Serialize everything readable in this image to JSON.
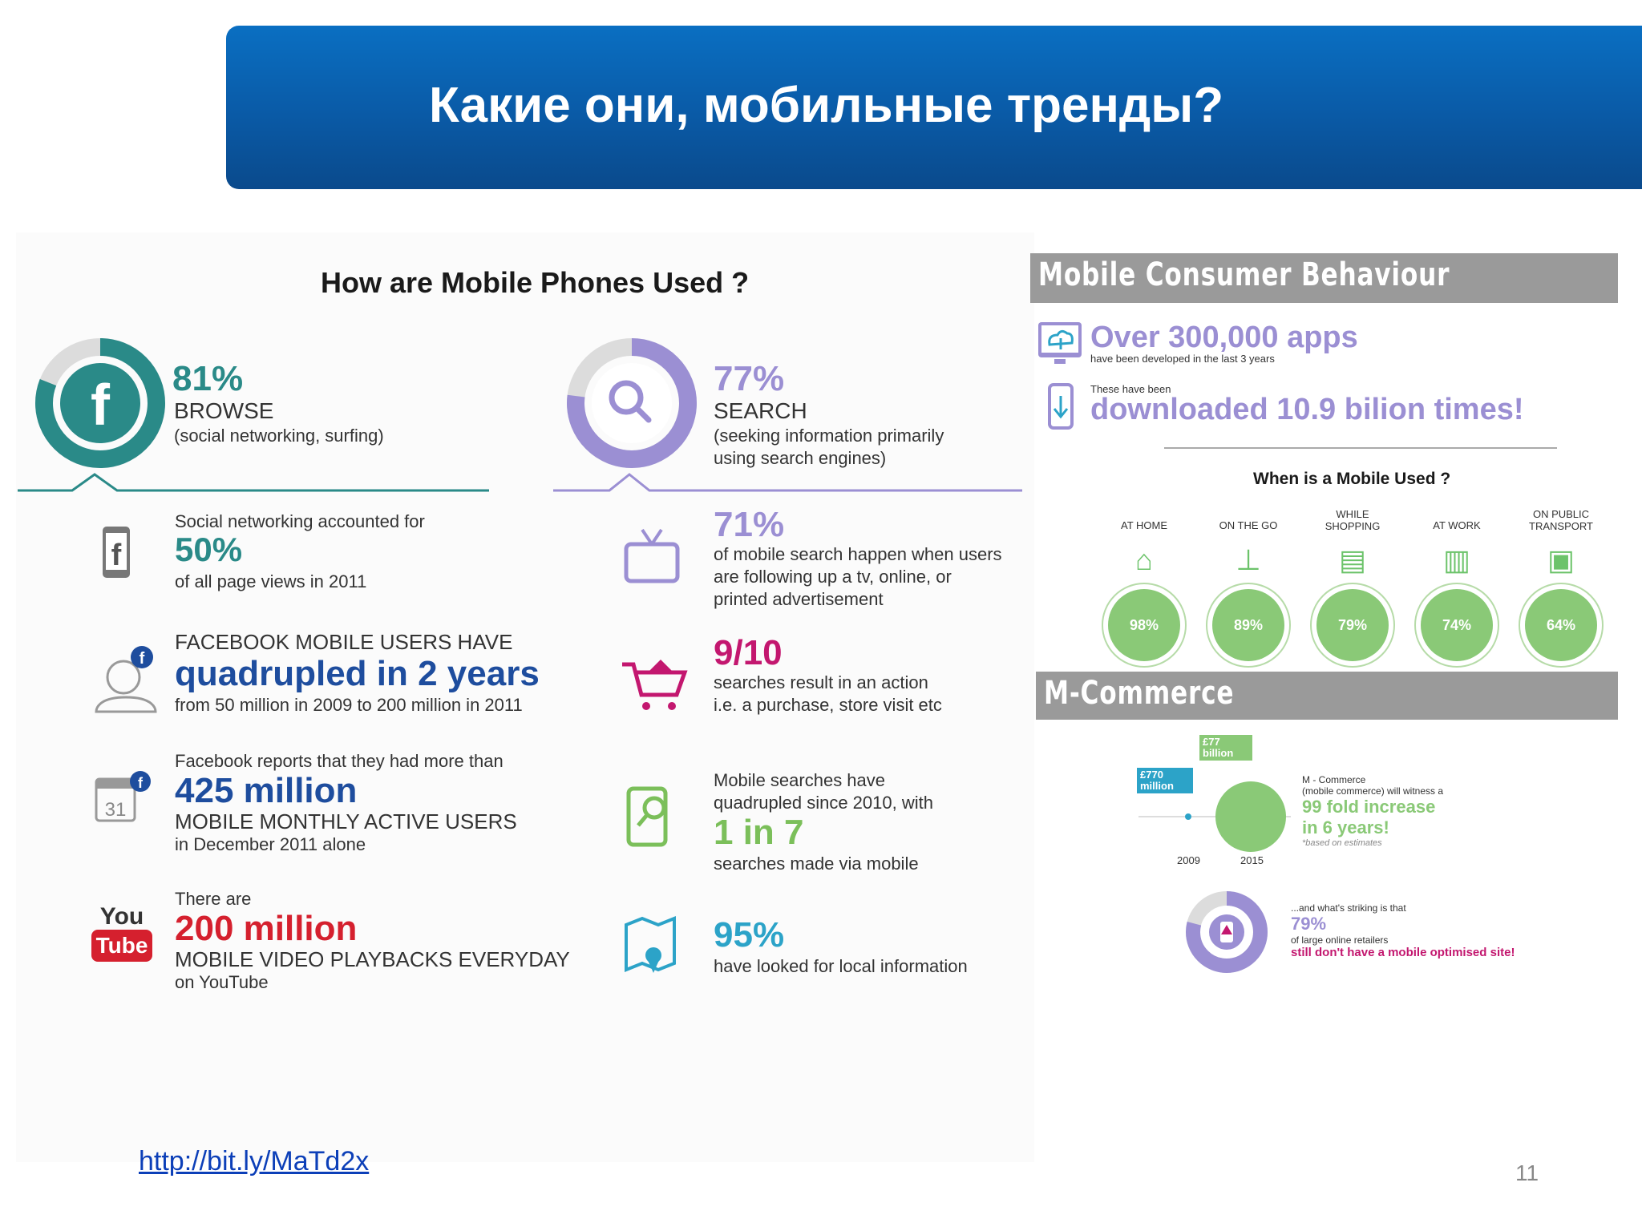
{
  "slide": {
    "title": "Какие они, мобильные тренды?",
    "url": "http://bit.ly/MaTd2x",
    "page_number": "11"
  },
  "left_infographic": {
    "title": "How are Mobile Phones Used ?",
    "browse": {
      "percent": "81%",
      "label": "BROWSE",
      "desc": "(social networking, surfing)",
      "value": 81,
      "icon": "facebook-icon"
    },
    "search": {
      "percent": "77%",
      "label": "SEARCH",
      "desc1": "(seeking information primarily",
      "desc2": "using search engines)",
      "value": 77,
      "icon": "magnifier-icon"
    },
    "facts_left": [
      {
        "icon": "phone-facebook-icon",
        "pre": "Social networking accounted for",
        "big": "50%",
        "post": "of all page views in 2011"
      },
      {
        "icon": "user-facebook-icon",
        "pre": "FACEBOOK MOBILE USERS HAVE",
        "big": "quadrupled in 2 years",
        "post": "from 50 million in 2009 to 200 million in 2011"
      },
      {
        "icon": "calendar-facebook-icon",
        "pre": "Facebook reports that they had more than",
        "big": "425 million",
        "mid": "MOBILE MONTHLY ACTIVE USERS",
        "post": "in December 2011 alone",
        "cal": "31"
      },
      {
        "icon": "youtube-logo",
        "pre": "There are",
        "big": "200 million",
        "mid": "MOBILE VIDEO PLAYBACKS EVERYDAY",
        "post": "on YouTube",
        "yt1": "You",
        "yt2": "Tube"
      }
    ],
    "facts_right": [
      {
        "icon": "tv-icon",
        "big": "71%",
        "l1": "of mobile search happen when users",
        "l2": "are following up a tv, online, or",
        "l3": "printed advertisement"
      },
      {
        "icon": "shopping-cart-icon",
        "big": "9/10",
        "l1": "searches result in an action",
        "l2": "i.e. a purchase, store visit etc"
      },
      {
        "icon": "phone-search-icon",
        "pre1": "Mobile searches have",
        "pre2": "quadrupled since 2010, with",
        "big": "1 in 7",
        "post": "searches made via mobile"
      },
      {
        "icon": "map-pin-icon",
        "big": "95%",
        "post": "have looked for local information"
      }
    ]
  },
  "right_infographic": {
    "consumer_header": "Mobile Consumer Behaviour",
    "apps_big": "Over 300,000 apps",
    "apps_small": "have been developed in the last 3 years",
    "downloads_pre": "These have been",
    "downloads_big": "downloaded 10.9 bilion times!",
    "when_title": "When is a Mobile Used ?",
    "when": [
      {
        "label1": "AT HOME",
        "label2": "",
        "percent": "98%",
        "icon": "house-icon"
      },
      {
        "label1": "ON THE GO",
        "label2": "",
        "percent": "89%",
        "icon": "signpost-icon"
      },
      {
        "label1": "WHILE",
        "label2": "SHOPPING",
        "percent": "79%",
        "icon": "store-icon"
      },
      {
        "label1": "AT WORK",
        "label2": "",
        "percent": "74%",
        "icon": "office-building-icon"
      },
      {
        "label1": "ON PUBLIC",
        "label2": "TRANSPORT",
        "percent": "64%",
        "icon": "bus-icon"
      }
    ],
    "mcommerce_header": "M-Commerce",
    "mc_2009_value": "£770 million",
    "mc_2015_value": "£77 billion",
    "mc_year1": "2009",
    "mc_year2": "2015",
    "mc_note1": "M - Commerce",
    "mc_note2": "(mobile commerce) will witness a",
    "mc_big1": "99 fold increase",
    "mc_big2": "in 6 years!",
    "mc_based": "*based on estimates",
    "striking_pre": "...and what's striking is that",
    "striking_pct": "79%",
    "striking_mid": "of large online retailers",
    "striking_post": "still don't have a mobile optimised site!",
    "striking_value": 79
  },
  "colors": {
    "banner": "#0a5aa6",
    "teal": "#2a8a88",
    "purple": "#9b8fd3",
    "navy": "#1e4d9e",
    "red": "#d5202e",
    "green": "#8ac977",
    "magenta": "#c3176f"
  }
}
